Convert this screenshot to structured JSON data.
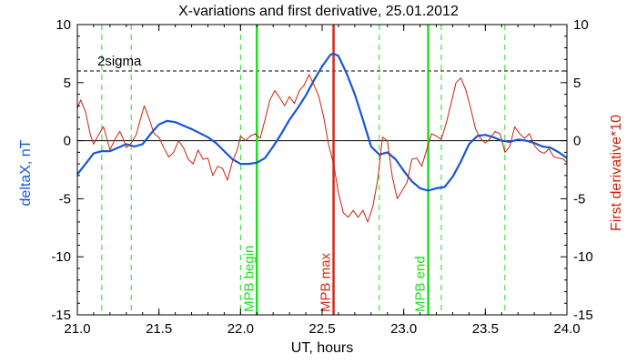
{
  "chart_data": {
    "type": "line",
    "title": "X-variations and first derivative, 25.01.2012",
    "xlabel": "UT, hours",
    "ylabel_left": "deltaX, nT",
    "ylabel_right": "First derivative*10",
    "xlim": [
      21.0,
      24.0
    ],
    "ylim": [
      -15,
      10
    ],
    "x_ticks": [
      "21.0",
      "21.5",
      "22.0",
      "22.5",
      "23.0",
      "23.5",
      "24.0"
    ],
    "y_ticks": [
      "10",
      "5",
      "0",
      "-5",
      "-10",
      "-15"
    ],
    "colors": {
      "deltaX": "#1a56d6",
      "derivative": "#c8230e",
      "green": "#22dd22",
      "red_marker": "#d42a1a"
    },
    "sigma_level": 6.0,
    "sigma_label": "2sigma",
    "zero_line": 0,
    "dashed_green_x": [
      21.15,
      21.33,
      22.0,
      22.85,
      23.23,
      23.62
    ],
    "markers": [
      {
        "x": 22.1,
        "label": "MPB begin",
        "color": "#22dd22"
      },
      {
        "x": 22.57,
        "label": "MPB max",
        "color": "#d42a1a"
      },
      {
        "x": 23.15,
        "label": "MPB end",
        "color": "#22dd22"
      }
    ],
    "series": [
      {
        "name": "deltaX, nT",
        "points": [
          [
            21.0,
            -2.9
          ],
          [
            21.05,
            -2.0
          ],
          [
            21.1,
            -1.1
          ],
          [
            21.15,
            -0.9
          ],
          [
            21.2,
            -0.9
          ],
          [
            21.25,
            -0.6
          ],
          [
            21.3,
            -0.3
          ],
          [
            21.35,
            -0.5
          ],
          [
            21.4,
            -0.3
          ],
          [
            21.45,
            0.6
          ],
          [
            21.5,
            1.4
          ],
          [
            21.55,
            1.7
          ],
          [
            21.6,
            1.6
          ],
          [
            21.7,
            1.0
          ],
          [
            21.8,
            0.3
          ],
          [
            21.85,
            -0.2
          ],
          [
            21.9,
            -0.9
          ],
          [
            21.95,
            -1.6
          ],
          [
            22.0,
            -2.0
          ],
          [
            22.05,
            -2.0
          ],
          [
            22.1,
            -1.9
          ],
          [
            22.15,
            -1.5
          ],
          [
            22.2,
            -0.5
          ],
          [
            22.25,
            0.6
          ],
          [
            22.3,
            1.8
          ],
          [
            22.35,
            2.8
          ],
          [
            22.4,
            3.9
          ],
          [
            22.45,
            5.2
          ],
          [
            22.5,
            6.4
          ],
          [
            22.55,
            7.4
          ],
          [
            22.57,
            7.5
          ],
          [
            22.6,
            7.3
          ],
          [
            22.65,
            5.8
          ],
          [
            22.7,
            4.0
          ],
          [
            22.75,
            1.8
          ],
          [
            22.8,
            -0.5
          ],
          [
            22.85,
            -1.2
          ],
          [
            22.9,
            -1.0
          ],
          [
            22.95,
            -1.6
          ],
          [
            23.0,
            -2.6
          ],
          [
            23.05,
            -3.5
          ],
          [
            23.1,
            -4.1
          ],
          [
            23.15,
            -4.3
          ],
          [
            23.2,
            -4.1
          ],
          [
            23.25,
            -4.0
          ],
          [
            23.3,
            -3.1
          ],
          [
            23.35,
            -1.8
          ],
          [
            23.4,
            -0.3
          ],
          [
            23.45,
            0.4
          ],
          [
            23.5,
            0.5
          ],
          [
            23.55,
            0.3
          ],
          [
            23.6,
            0.0
          ],
          [
            23.65,
            -0.1
          ],
          [
            23.7,
            0.1
          ],
          [
            23.75,
            0.0
          ],
          [
            23.8,
            -0.2
          ],
          [
            23.85,
            -0.5
          ],
          [
            23.9,
            -0.6
          ],
          [
            23.95,
            -1.0
          ],
          [
            24.0,
            -1.5
          ]
        ]
      },
      {
        "name": "First derivative*10",
        "points": [
          [
            21.0,
            2.8
          ],
          [
            21.02,
            3.5
          ],
          [
            21.05,
            2.5
          ],
          [
            21.08,
            0.5
          ],
          [
            21.1,
            -0.3
          ],
          [
            21.13,
            0.5
          ],
          [
            21.16,
            1.2
          ],
          [
            21.18,
            0.2
          ],
          [
            21.2,
            -0.8
          ],
          [
            21.23,
            0.1
          ],
          [
            21.26,
            0.8
          ],
          [
            21.28,
            0.2
          ],
          [
            21.3,
            -0.6
          ],
          [
            21.33,
            -0.2
          ],
          [
            21.36,
            0.5
          ],
          [
            21.38,
            1.5
          ],
          [
            21.41,
            3.0
          ],
          [
            21.44,
            1.9
          ],
          [
            21.47,
            0.6
          ],
          [
            21.5,
            0.3
          ],
          [
            21.53,
            -0.6
          ],
          [
            21.56,
            -1.4
          ],
          [
            21.59,
            -1.0
          ],
          [
            21.62,
            0.0
          ],
          [
            21.65,
            -0.6
          ],
          [
            21.68,
            -1.6
          ],
          [
            21.71,
            -2.0
          ],
          [
            21.74,
            -0.8
          ],
          [
            21.77,
            -1.6
          ],
          [
            21.8,
            -1.5
          ],
          [
            21.83,
            -3.0
          ],
          [
            21.86,
            -2.2
          ],
          [
            21.89,
            -2.4
          ],
          [
            21.92,
            -3.4
          ],
          [
            21.95,
            -1.8
          ],
          [
            21.98,
            -0.8
          ],
          [
            22.0,
            0.4
          ],
          [
            22.03,
            0.0
          ],
          [
            22.06,
            0.4
          ],
          [
            22.09,
            0.6
          ],
          [
            22.12,
            0.2
          ],
          [
            22.15,
            1.8
          ],
          [
            22.18,
            3.5
          ],
          [
            22.21,
            4.3
          ],
          [
            22.24,
            3.7
          ],
          [
            22.27,
            3.0
          ],
          [
            22.3,
            3.8
          ],
          [
            22.33,
            3.2
          ],
          [
            22.36,
            4.3
          ],
          [
            22.39,
            4.8
          ],
          [
            22.42,
            5.7
          ],
          [
            22.45,
            4.8
          ],
          [
            22.48,
            3.8
          ],
          [
            22.51,
            2.0
          ],
          [
            22.54,
            -0.4
          ],
          [
            22.57,
            -2.0
          ],
          [
            22.6,
            -4.5
          ],
          [
            22.63,
            -6.2
          ],
          [
            22.66,
            -6.6
          ],
          [
            22.69,
            -6.0
          ],
          [
            22.72,
            -6.6
          ],
          [
            22.75,
            -6.0
          ],
          [
            22.78,
            -7.0
          ],
          [
            22.81,
            -5.7
          ],
          [
            22.84,
            -3.4
          ],
          [
            22.87,
            0.3
          ],
          [
            22.9,
            0.0
          ],
          [
            22.93,
            -3.1
          ],
          [
            22.96,
            -5.0
          ],
          [
            22.99,
            -4.3
          ],
          [
            23.02,
            -3.6
          ],
          [
            23.05,
            -1.6
          ],
          [
            23.08,
            -1.5
          ],
          [
            23.11,
            -2.2
          ],
          [
            23.14,
            -0.8
          ],
          [
            23.17,
            0.6
          ],
          [
            23.2,
            0.4
          ],
          [
            23.23,
            0.1
          ],
          [
            23.26,
            1.5
          ],
          [
            23.29,
            3.2
          ],
          [
            23.32,
            5.0
          ],
          [
            23.35,
            5.4
          ],
          [
            23.38,
            4.4
          ],
          [
            23.41,
            2.8
          ],
          [
            23.44,
            1.0
          ],
          [
            23.47,
            0.2
          ],
          [
            23.5,
            -0.2
          ],
          [
            23.53,
            0.2
          ],
          [
            23.56,
            0.8
          ],
          [
            23.59,
            0.6
          ],
          [
            23.62,
            -1.0
          ],
          [
            23.65,
            -0.5
          ],
          [
            23.68,
            1.2
          ],
          [
            23.71,
            0.6
          ],
          [
            23.74,
            0.2
          ],
          [
            23.77,
            0.6
          ],
          [
            23.8,
            -0.4
          ],
          [
            23.83,
            -0.9
          ],
          [
            23.86,
            -1.1
          ],
          [
            23.89,
            -0.7
          ],
          [
            23.92,
            -1.4
          ],
          [
            23.95,
            -1.5
          ],
          [
            23.98,
            -1.6
          ],
          [
            24.0,
            -1.9
          ]
        ]
      }
    ]
  }
}
